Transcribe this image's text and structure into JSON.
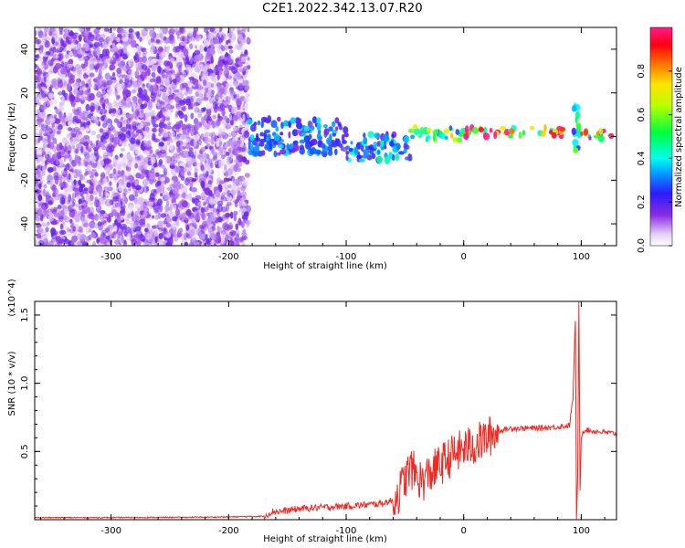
{
  "title": "C2E1.2022.342.13.07.R20",
  "colors": {
    "signal": "#ee2a24",
    "spectrogram_noise": "#7a1fe6",
    "frame": "#000000"
  },
  "chart_data": [
    {
      "type": "heatmap",
      "xlabel": "Height of straight line (km)",
      "ylabel": "Frequency (Hz)",
      "xlim": [
        -365,
        130
      ],
      "ylim": [
        -50,
        50
      ],
      "x_ticks": [
        -300,
        -200,
        -100,
        0,
        100
      ],
      "x_tick_labels": [
        "-300",
        "-200",
        "-100",
        "0",
        "100"
      ],
      "y_ticks": [
        -40,
        -20,
        0,
        20,
        40
      ],
      "y_tick_labels": [
        "-40",
        "-20",
        "0",
        "20",
        "40"
      ],
      "colorbar": {
        "label": "Normalized spectral amplitude",
        "range": [
          0,
          1
        ],
        "ticks": [
          0.0,
          0.2,
          0.4,
          0.6,
          0.8
        ],
        "tick_labels": [
          "0.0",
          "0.2",
          "0.4",
          "0.6",
          "0.8"
        ],
        "colormap": "rainbow (white-violet-blue-cyan-green-yellow-red-magenta)"
      },
      "grid": false,
      "regions": [
        {
          "x_range": [
            -365,
            -183
          ],
          "freq_range": [
            -50,
            50
          ],
          "amplitude": 0.1
        },
        {
          "x_range": [
            -183,
            -100
          ],
          "freq_center": 0,
          "freq_half_width": 8,
          "amplitude": 0.3
        },
        {
          "x_range": [
            -100,
            -45
          ],
          "freq_center": -5,
          "freq_half_width": 6,
          "amplitude": 0.35
        },
        {
          "x_range": [
            -45,
            0
          ],
          "freq_center": 1,
          "freq_half_width": 3,
          "amplitude": 0.6
        },
        {
          "x_range": [
            0,
            90
          ],
          "freq_center": 2,
          "freq_half_width": 2,
          "amplitude": 0.9
        },
        {
          "x_range": [
            93,
            98
          ],
          "freq_range": [
            -10,
            15
          ],
          "amplitude": 0.5
        },
        {
          "x_range": [
            98,
            130
          ],
          "freq_center": 1,
          "freq_half_width": 2,
          "amplitude": 0.85
        }
      ]
    },
    {
      "type": "line",
      "xlabel": "Height of straight line (km)",
      "ylabel": "SNR (10 * v/v)",
      "y_multiplier": "(x10^4)",
      "xlim": [
        -365,
        130
      ],
      "ylim": [
        0,
        1.6
      ],
      "x_ticks": [
        -300,
        -200,
        -100,
        0,
        100
      ],
      "x_tick_labels": [
        "-300",
        "-200",
        "-100",
        "0",
        "100"
      ],
      "y_ticks": [
        0.5,
        1.0,
        1.5
      ],
      "y_tick_labels": [
        "0.5",
        "1.0",
        "1.5"
      ],
      "grid": false,
      "series": [
        {
          "x": [
            -365,
            -320,
            -280,
            -240,
            -200,
            -170,
            -163,
            -155,
            -140,
            -120,
            -100,
            -80,
            -70,
            -60,
            -55,
            -50,
            -45,
            -40,
            -35,
            -30,
            -20,
            -10,
            0,
            10,
            20,
            30,
            40,
            60,
            80,
            90,
            93,
            95,
            96,
            97,
            98,
            99,
            100,
            101,
            103,
            110,
            120,
            130
          ],
          "y": [
            0.015,
            0.015,
            0.016,
            0.017,
            0.02,
            0.025,
            0.06,
            0.06,
            0.08,
            0.09,
            0.1,
            0.11,
            0.12,
            0.14,
            0.2,
            0.3,
            0.38,
            0.32,
            0.28,
            0.33,
            0.4,
            0.47,
            0.52,
            0.55,
            0.6,
            0.65,
            0.67,
            0.67,
            0.68,
            0.69,
            0.9,
            1.47,
            0.02,
            0.3,
            1.6,
            0.2,
            0.6,
            0.64,
            0.66,
            0.65,
            0.64,
            0.63
          ]
        }
      ]
    }
  ]
}
